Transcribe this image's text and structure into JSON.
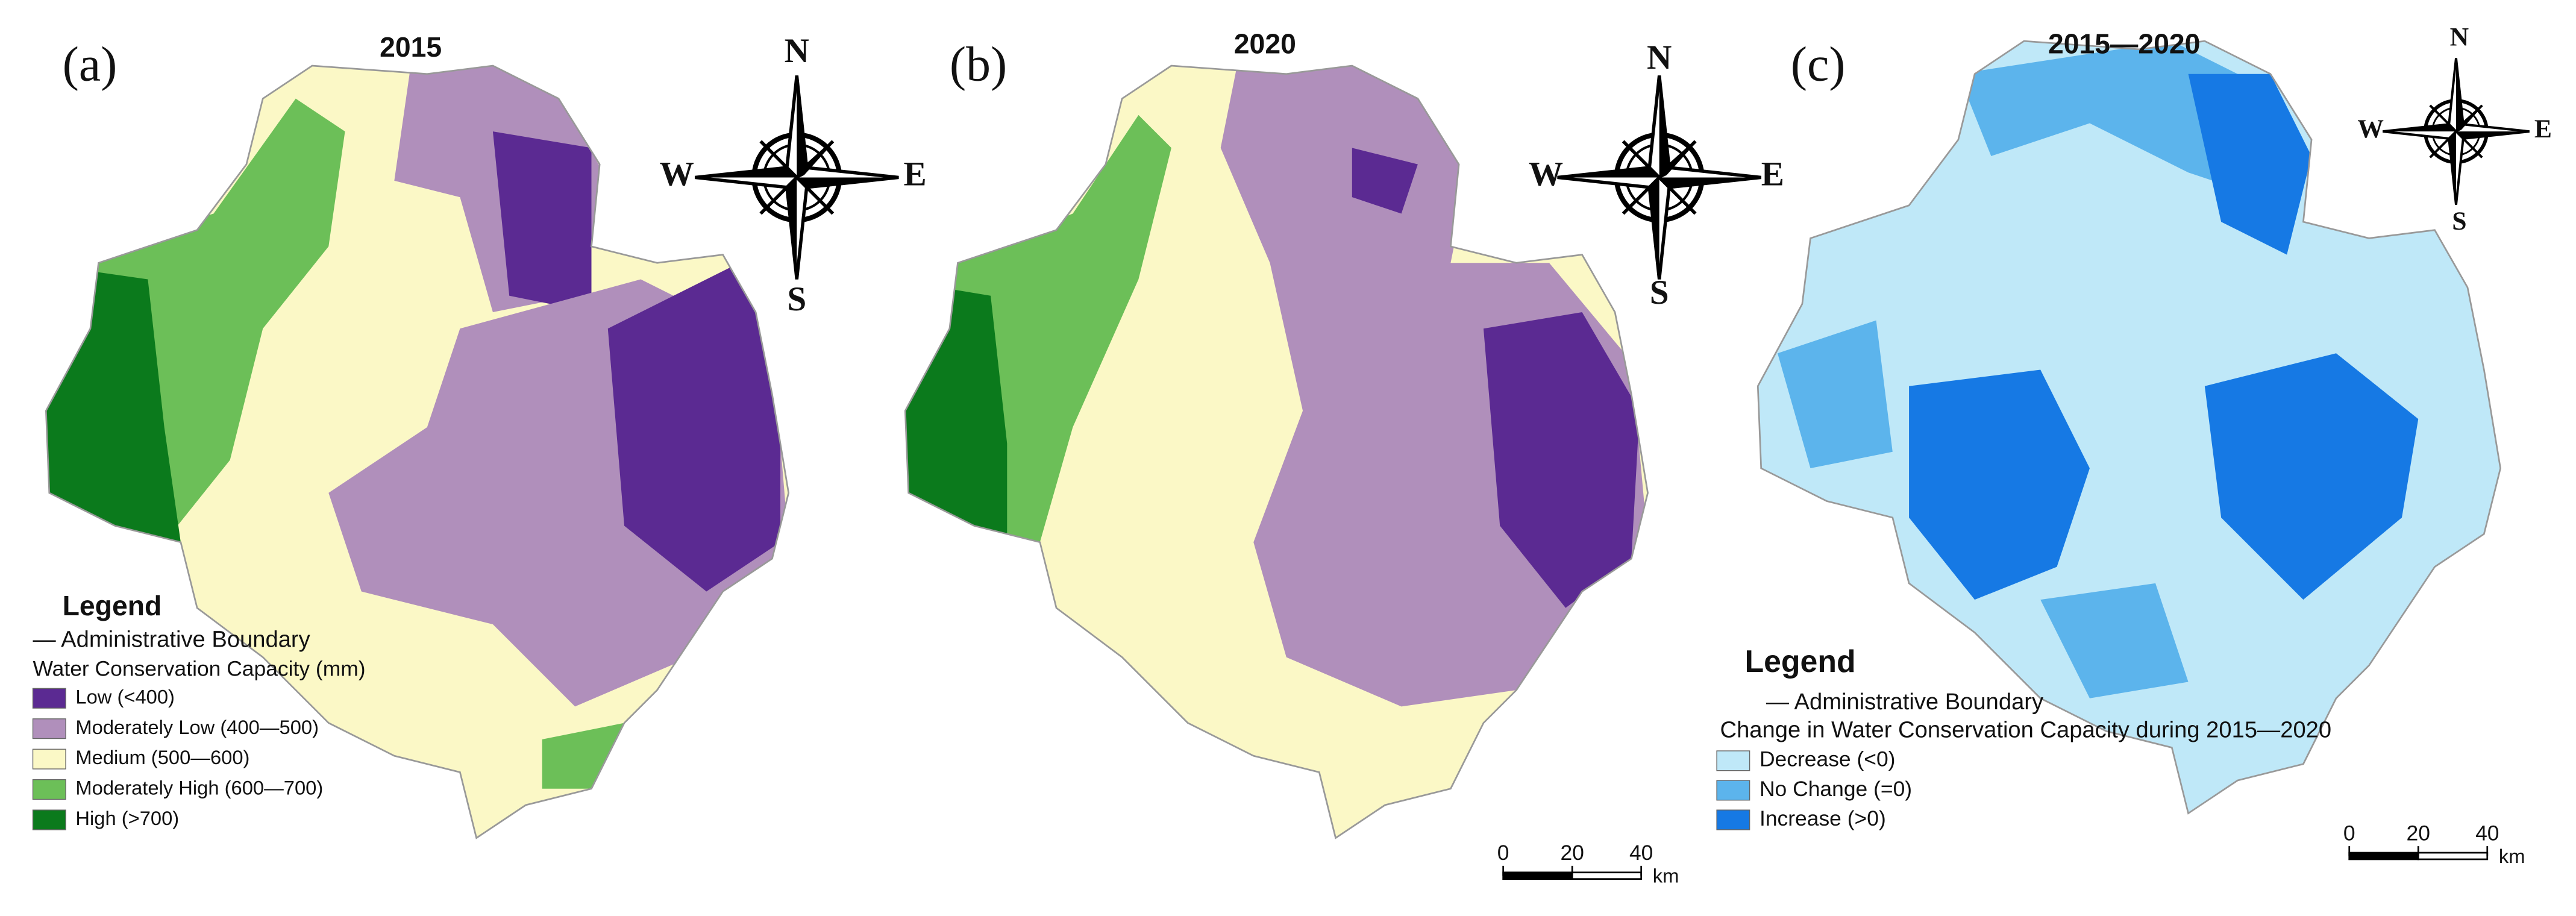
{
  "panels": [
    {
      "label": "(a)",
      "title": "2015",
      "compass": {
        "n": "N",
        "s": "S",
        "w": "W",
        "e": "E"
      },
      "legend": {
        "title": "Legend",
        "boundary": "— Administrative Boundary",
        "subtitle": "Water Conservation Capacity (mm)",
        "items": [
          {
            "label": "Low (<400)",
            "color": "#5b2a92"
          },
          {
            "label": "Moderately Low (400—500)",
            "color": "#b08fbb"
          },
          {
            "label": "Medium (500—600)",
            "color": "#fbf8c6"
          },
          {
            "label": "Moderately High (600—700)",
            "color": "#6cbf58"
          },
          {
            "label": "High (>700)",
            "color": "#0b7a1c"
          }
        ]
      }
    },
    {
      "label": "(b)",
      "title": "2020",
      "compass": {
        "n": "N",
        "s": "S",
        "w": "W",
        "e": "E"
      },
      "scale_bar": {
        "ticks": [
          0,
          20,
          40
        ],
        "unit": "km"
      }
    },
    {
      "label": "(c)",
      "title": "2015—2020",
      "compass": {
        "n": "N",
        "s": "S",
        "w": "W",
        "e": "E"
      },
      "legend": {
        "title": "Legend",
        "boundary": "— Administrative Boundary",
        "subtitle": "Change in Water Conservation Capacity during 2015—2020",
        "items": [
          {
            "label": "Decrease (<0)",
            "color": "#bfe8f8"
          },
          {
            "label": "No Change (=0)",
            "color": "#5cb4ec"
          },
          {
            "label": "Increase (>0)",
            "color": "#1679e4"
          }
        ]
      },
      "scale_bar": {
        "ticks": [
          0,
          20,
          40
        ],
        "unit": "km"
      }
    }
  ]
}
